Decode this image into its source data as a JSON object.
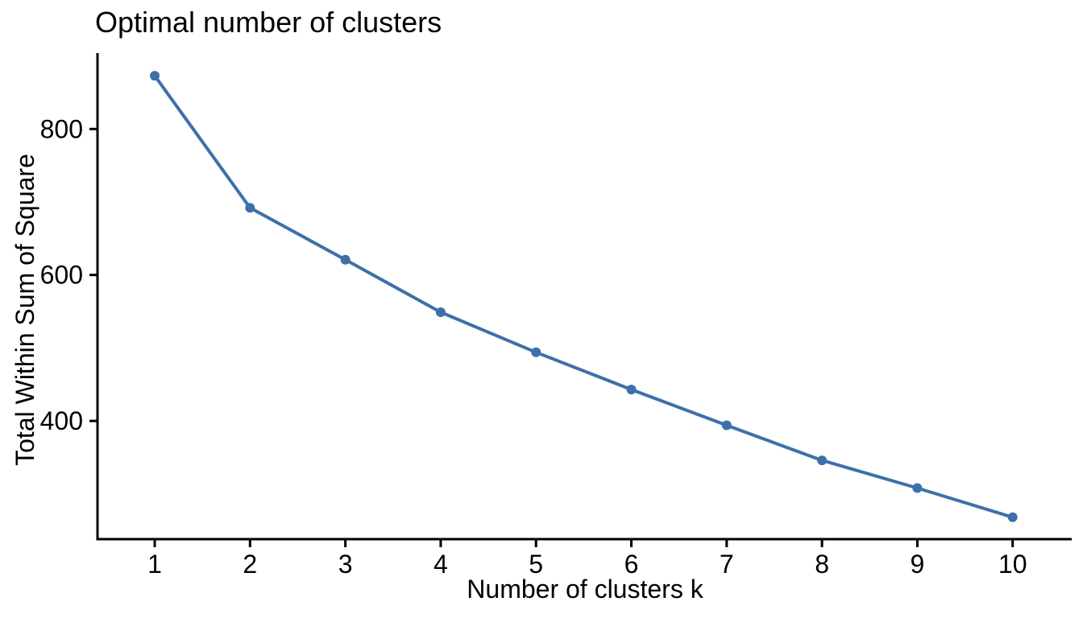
{
  "chart_data": {
    "type": "line",
    "title": "Optimal number of clusters",
    "xlabel": "Number of clusters k",
    "ylabel": "Total Within Sum of Square",
    "x": [
      1,
      2,
      3,
      4,
      5,
      6,
      7,
      8,
      9,
      10
    ],
    "series": [
      {
        "name": "total-within-sum-of-square",
        "values": [
          873,
          692,
          621,
          549,
          494,
          443,
          394,
          346,
          308,
          268
        ]
      }
    ],
    "xticks": [
      1,
      2,
      3,
      4,
      5,
      6,
      7,
      8,
      9,
      10
    ],
    "yticks": [
      400,
      600,
      800
    ],
    "xlim": [
      0.4,
      10.62
    ],
    "ylim": [
      238,
      904
    ],
    "grid": false,
    "legend": "none",
    "line_color": "#3E70AA",
    "point_color": "#3E70AA",
    "axis_color": "#000000",
    "text_color": "#000000"
  }
}
